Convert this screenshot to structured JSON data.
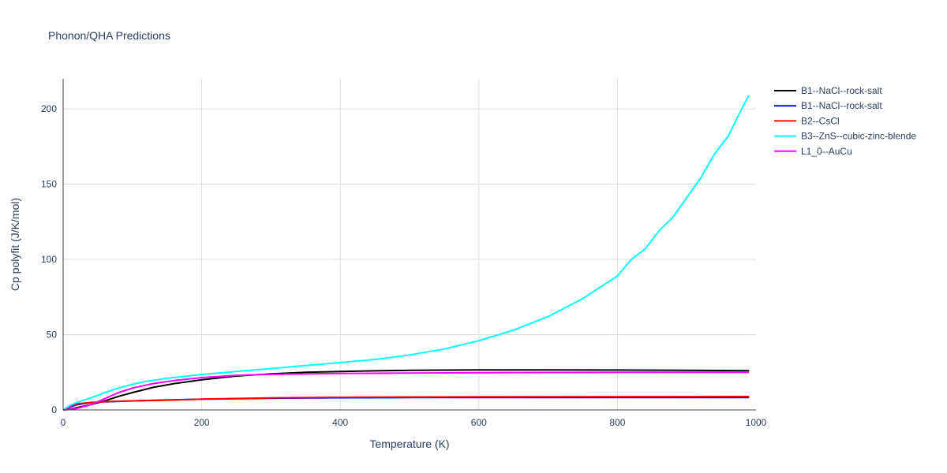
{
  "chart_data": {
    "type": "line",
    "title": "Phonon/QHA Predictions",
    "xlabel": "Temperature (K)",
    "ylabel": "Cp polyfit (J/K/mol)",
    "xlim": [
      0,
      1000
    ],
    "ylim": [
      0,
      220
    ],
    "xticks": [
      0,
      200,
      400,
      600,
      800,
      1000
    ],
    "yticks": [
      0,
      50,
      100,
      150,
      200
    ],
    "grid": true,
    "legend_position": "right",
    "series": [
      {
        "name": "B1--NaCl--rock-salt",
        "color": "#000000",
        "x": [
          0,
          10,
          20,
          40,
          60,
          80,
          100,
          130,
          160,
          200,
          250,
          300,
          350,
          400,
          450,
          500,
          600,
          700,
          800,
          900,
          990
        ],
        "y": [
          0,
          0.5,
          1.5,
          3.5,
          6,
          9,
          11.5,
          15,
          17.5,
          20,
          22.5,
          24,
          25,
          25.5,
          26,
          26.3,
          26.6,
          26.6,
          26.5,
          26.3,
          26.1
        ]
      },
      {
        "name": "B1--NaCl--rock-salt",
        "color": "#0000ff",
        "x": [
          0,
          10,
          20,
          40,
          60,
          100,
          150,
          200,
          300,
          400,
          500,
          600,
          800,
          990
        ],
        "y": [
          0,
          2,
          3.5,
          4.8,
          5.4,
          6,
          6.6,
          7.1,
          7.8,
          8.1,
          8.2,
          8.3,
          8.3,
          8.3
        ]
      },
      {
        "name": "B2--CsCl",
        "color": "#ff0000",
        "x": [
          0,
          10,
          20,
          40,
          60,
          100,
          150,
          200,
          300,
          400,
          500,
          600,
          800,
          990
        ],
        "y": [
          0,
          2.5,
          4,
          5,
          5.5,
          6,
          6.5,
          7.2,
          8,
          8.4,
          8.6,
          8.7,
          8.8,
          8.9
        ]
      },
      {
        "name": "B3--ZnS--cubic-zinc-blende",
        "color": "#00ffff",
        "x": [
          0,
          10,
          20,
          30,
          40,
          60,
          80,
          100,
          120,
          150,
          200,
          250,
          300,
          350,
          400,
          450,
          500,
          550,
          600,
          650,
          700,
          750,
          800,
          820,
          840,
          860,
          880,
          900,
          920,
          940,
          960,
          975,
          985,
          990
        ],
        "y": [
          0,
          3,
          5,
          6.5,
          8,
          11.5,
          14.5,
          17,
          19,
          21,
          23.5,
          25.5,
          27.5,
          29.5,
          31.5,
          33.5,
          36.5,
          40.5,
          46,
          53,
          62,
          74,
          89,
          100,
          107,
          119,
          128,
          141,
          154,
          170,
          182,
          196,
          205,
          209
        ]
      },
      {
        "name": "L1_0--AuCu",
        "color": "#ff00ff",
        "x": [
          0,
          10,
          20,
          40,
          60,
          80,
          100,
          130,
          160,
          200,
          250,
          300,
          400,
          500,
          600,
          700,
          800,
          900,
          990
        ],
        "y": [
          0,
          0.3,
          1,
          3.5,
          7.5,
          11.5,
          14.5,
          17.5,
          19.5,
          21.5,
          23,
          23.6,
          24.2,
          24.5,
          24.8,
          24.9,
          25,
          25,
          25
        ]
      }
    ]
  }
}
